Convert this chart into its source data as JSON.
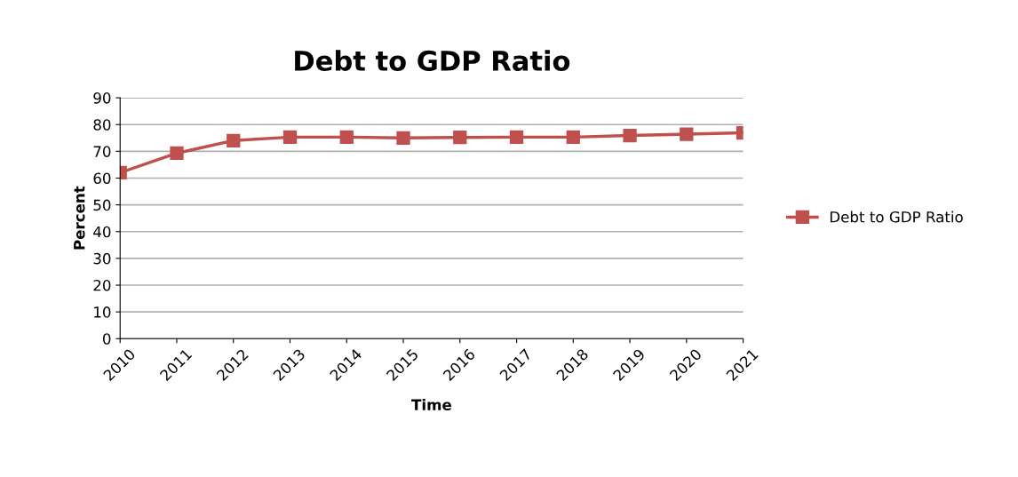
{
  "chart_data": {
    "type": "line",
    "title": "Debt to GDP Ratio",
    "xlabel": "Time",
    "ylabel": "Percent",
    "categories": [
      "2010",
      "2011",
      "2012",
      "2013",
      "2014",
      "2015",
      "2016",
      "2017",
      "2018",
      "2019",
      "2020",
      "2021"
    ],
    "series": [
      {
        "name": "Debt to GDP Ratio",
        "color": "#c0504d",
        "values": [
          62,
          69.3,
          74,
          75.3,
          75.3,
          75,
          75.2,
          75.3,
          75.3,
          75.9,
          76.4,
          76.9
        ]
      }
    ],
    "ylim": [
      0,
      90
    ],
    "yticks": [
      0,
      10,
      20,
      30,
      40,
      50,
      60,
      70,
      80,
      90
    ],
    "grid": "y",
    "legend": "right",
    "marker": "square",
    "line_style": "solid"
  }
}
